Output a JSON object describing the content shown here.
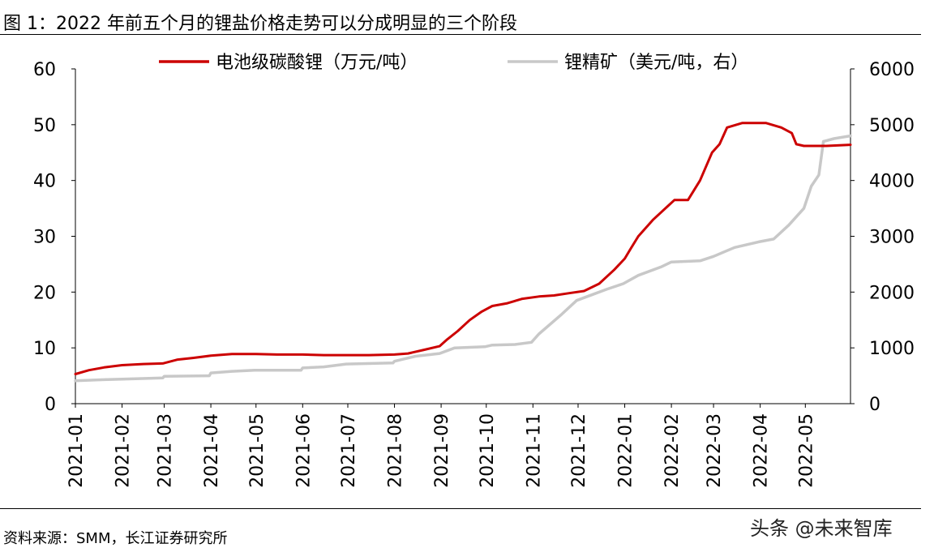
{
  "figure_title": "图 1：2022 年前五个月的锂盐价格走势可以分成明显的三个阶段",
  "source_note": "资料来源：SMM，长江证券研究所",
  "watermark": "头条 @未来智库",
  "chart_data": {
    "type": "line",
    "title": "图 1：2022 年前五个月的锂盐价格走势可以分成明显的三个阶段",
    "x_ticks": [
      "2021-01",
      "2021-02",
      "2021-03",
      "2021-04",
      "2021-05",
      "2021-06",
      "2021-07",
      "2021-08",
      "2021-09",
      "2021-10",
      "2021-11",
      "2021-12",
      "2022-01",
      "2022-02",
      "2022-03",
      "2022-04",
      "2022-05"
    ],
    "x_range": [
      "2021-01-01",
      "2022-05-31"
    ],
    "y_left": {
      "min": 0,
      "max": 60,
      "ticks": [
        0,
        10,
        20,
        30,
        40,
        50,
        60
      ]
    },
    "y_right": {
      "min": 0,
      "max": 6000,
      "ticks": [
        0,
        1000,
        2000,
        3000,
        4000,
        5000,
        6000
      ]
    },
    "legend_position": "top",
    "grid": false,
    "series": [
      {
        "name": "电池级碳酸锂（万元/吨）",
        "axis": "left",
        "color": "#cc0000",
        "points": [
          [
            "2021-01-01",
            5.3
          ],
          [
            "2021-01-10",
            6.0
          ],
          [
            "2021-01-20",
            6.5
          ],
          [
            "2021-02-01",
            6.9
          ],
          [
            "2021-02-15",
            7.1
          ],
          [
            "2021-02-28",
            7.2
          ],
          [
            "2021-03-10",
            7.9
          ],
          [
            "2021-03-20",
            8.2
          ],
          [
            "2021-04-01",
            8.6
          ],
          [
            "2021-04-15",
            8.9
          ],
          [
            "2021-05-01",
            8.9
          ],
          [
            "2021-05-15",
            8.8
          ],
          [
            "2021-06-01",
            8.8
          ],
          [
            "2021-06-15",
            8.7
          ],
          [
            "2021-07-01",
            8.7
          ],
          [
            "2021-07-15",
            8.7
          ],
          [
            "2021-08-01",
            8.8
          ],
          [
            "2021-08-10",
            9.0
          ],
          [
            "2021-08-20",
            9.6
          ],
          [
            "2021-08-31",
            10.3
          ],
          [
            "2021-09-05",
            11.5
          ],
          [
            "2021-09-12",
            13.0
          ],
          [
            "2021-09-20",
            15.0
          ],
          [
            "2021-09-28",
            16.5
          ],
          [
            "2021-10-05",
            17.5
          ],
          [
            "2021-10-15",
            18.0
          ],
          [
            "2021-10-25",
            18.8
          ],
          [
            "2021-11-05",
            19.2
          ],
          [
            "2021-11-15",
            19.4
          ],
          [
            "2021-11-25",
            19.8
          ],
          [
            "2021-12-05",
            20.2
          ],
          [
            "2021-12-15",
            21.5
          ],
          [
            "2021-12-25",
            24.0
          ],
          [
            "2022-01-01",
            26.0
          ],
          [
            "2022-01-05",
            27.8
          ],
          [
            "2022-01-10",
            30.0
          ],
          [
            "2022-01-20",
            33.0
          ],
          [
            "2022-01-30",
            35.5
          ],
          [
            "2022-02-03",
            36.5
          ],
          [
            "2022-02-12",
            36.5
          ],
          [
            "2022-02-20",
            40.0
          ],
          [
            "2022-02-28",
            45.0
          ],
          [
            "2022-03-05",
            46.5
          ],
          [
            "2022-03-10",
            49.5
          ],
          [
            "2022-03-20",
            50.3
          ],
          [
            "2022-04-05",
            50.3
          ],
          [
            "2022-04-15",
            49.5
          ],
          [
            "2022-04-22",
            48.5
          ],
          [
            "2022-04-25",
            46.5
          ],
          [
            "2022-04-30",
            46.2
          ],
          [
            "2022-05-15",
            46.2
          ],
          [
            "2022-05-31",
            46.4
          ]
        ]
      },
      {
        "name": "锂精矿（美元/吨，右）",
        "axis": "right",
        "color": "#c8c8c8",
        "points": [
          [
            "2021-01-01",
            410
          ],
          [
            "2021-01-20",
            430
          ],
          [
            "2021-02-01",
            440
          ],
          [
            "2021-02-28",
            460
          ],
          [
            "2021-03-01",
            490
          ],
          [
            "2021-03-31",
            500
          ],
          [
            "2021-04-01",
            550
          ],
          [
            "2021-04-15",
            580
          ],
          [
            "2021-04-30",
            600
          ],
          [
            "2021-05-31",
            600
          ],
          [
            "2021-06-01",
            640
          ],
          [
            "2021-06-15",
            660
          ],
          [
            "2021-06-30",
            710
          ],
          [
            "2021-07-31",
            730
          ],
          [
            "2021-08-01",
            760
          ],
          [
            "2021-08-15",
            850
          ],
          [
            "2021-08-31",
            900
          ],
          [
            "2021-09-10",
            1000
          ],
          [
            "2021-09-30",
            1020
          ],
          [
            "2021-10-05",
            1050
          ],
          [
            "2021-10-20",
            1060
          ],
          [
            "2021-10-31",
            1100
          ],
          [
            "2021-11-05",
            1250
          ],
          [
            "2021-11-20",
            1600
          ],
          [
            "2021-11-30",
            1850
          ],
          [
            "2021-12-10",
            1950
          ],
          [
            "2021-12-20",
            2050
          ],
          [
            "2021-12-31",
            2150
          ],
          [
            "2022-01-10",
            2300
          ],
          [
            "2022-01-25",
            2450
          ],
          [
            "2022-02-01",
            2540
          ],
          [
            "2022-02-20",
            2560
          ],
          [
            "2022-03-01",
            2640
          ],
          [
            "2022-03-15",
            2800
          ],
          [
            "2022-03-31",
            2900
          ],
          [
            "2022-04-10",
            2950
          ],
          [
            "2022-04-20",
            3200
          ],
          [
            "2022-04-30",
            3500
          ],
          [
            "2022-05-05",
            3900
          ],
          [
            "2022-05-10",
            4100
          ],
          [
            "2022-05-13",
            4700
          ],
          [
            "2022-05-20",
            4750
          ],
          [
            "2022-05-31",
            4800
          ]
        ]
      }
    ]
  }
}
